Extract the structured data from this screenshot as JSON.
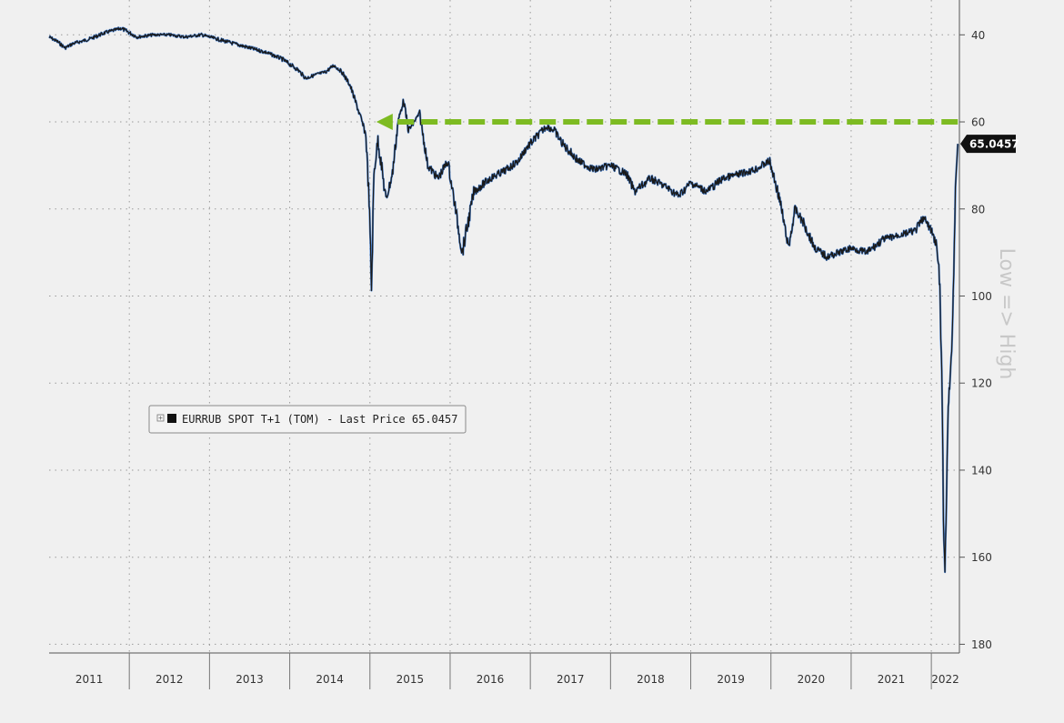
{
  "chart_data": {
    "type": "line",
    "y_inverted": true,
    "ylim": [
      32,
      182
    ],
    "xlim": [
      2011.0,
      2022.35
    ],
    "yticks": [
      40,
      60,
      80,
      100,
      120,
      140,
      160,
      180
    ],
    "xticks": [
      "2011",
      "2012",
      "2013",
      "2014",
      "2015",
      "2016",
      "2017",
      "2018",
      "2019",
      "2020",
      "2021",
      "2022"
    ],
    "ylabel": "Low => High",
    "grid": true,
    "legend": {
      "position": "middle-left",
      "label": "EURRUB SPOT T+1 (TOM) - Last Price 65.0457"
    },
    "last_price_label": "65.0457",
    "colors": {
      "series": "#1a1a1a",
      "highlight": "#3a7bd5",
      "arrow": "#7dbb22",
      "background": "#f0f0f0",
      "grid": "#9a9a9a"
    },
    "series": [
      {
        "name": "EURRUB SPOT T+1 (TOM) - Last Price",
        "x": [
          2011.0,
          2011.1,
          2011.2,
          2011.3,
          2011.5,
          2011.7,
          2011.9,
          2012.1,
          2012.3,
          2012.5,
          2012.7,
          2012.9,
          2013.1,
          2013.4,
          2013.7,
          2013.9,
          2014.1,
          2014.2,
          2014.35,
          2014.45,
          2014.55,
          2014.65,
          2014.75,
          2014.85,
          2014.95,
          2014.99,
          2015.02,
          2015.05,
          2015.1,
          2015.2,
          2015.28,
          2015.35,
          2015.42,
          2015.48,
          2015.55,
          2015.62,
          2015.72,
          2015.85,
          2015.97,
          2016.05,
          2016.15,
          2016.3,
          2016.5,
          2016.7,
          2016.85,
          2016.95,
          2017.1,
          2017.2,
          2017.3,
          2017.4,
          2017.6,
          2017.8,
          2018.0,
          2018.2,
          2018.3,
          2018.5,
          2018.7,
          2018.85,
          2019.0,
          2019.2,
          2019.4,
          2019.6,
          2019.8,
          2019.98,
          2020.1,
          2020.18,
          2020.22,
          2020.3,
          2020.4,
          2020.55,
          2020.7,
          2020.85,
          2021.0,
          2021.2,
          2021.4,
          2021.6,
          2021.8,
          2021.9,
          2022.0,
          2022.06,
          2022.1,
          2022.13,
          2022.15,
          2022.17,
          2022.19,
          2022.21,
          2022.24,
          2022.26,
          2022.28,
          2022.3,
          2022.33
        ],
        "values": [
          40.5,
          41.5,
          43.0,
          42.0,
          41.0,
          39.5,
          38.5,
          40.5,
          40.0,
          40.0,
          40.5,
          40.0,
          41.0,
          42.5,
          44.0,
          45.5,
          48.0,
          50.0,
          49.0,
          48.5,
          47.0,
          48.5,
          51.5,
          57.0,
          63.0,
          78.0,
          98.0,
          72.0,
          64.0,
          78.0,
          72.0,
          60.0,
          55.0,
          62.0,
          60.0,
          58.0,
          70.0,
          73.0,
          69.0,
          78.0,
          90.0,
          76.0,
          73.0,
          71.0,
          69.0,
          66.0,
          63.0,
          61.0,
          62.0,
          65.0,
          69.0,
          71.0,
          70.0,
          72.0,
          76.0,
          73.0,
          75.0,
          77.0,
          74.0,
          76.0,
          73.0,
          72.0,
          71.0,
          69.0,
          77.0,
          85.0,
          89.0,
          80.0,
          83.0,
          89.0,
          91.0,
          90.0,
          89.0,
          90.0,
          87.0,
          86.0,
          85.0,
          82.0,
          85.0,
          88.0,
          95.0,
          118.0,
          150.0,
          165.0,
          145.0,
          125.0,
          118.0,
          108.0,
          95.0,
          75.0,
          65.0457
        ]
      }
    ],
    "annotation": {
      "type": "arrow",
      "y": 60,
      "x_from": 2022.33,
      "x_to": 2015.08
    }
  }
}
